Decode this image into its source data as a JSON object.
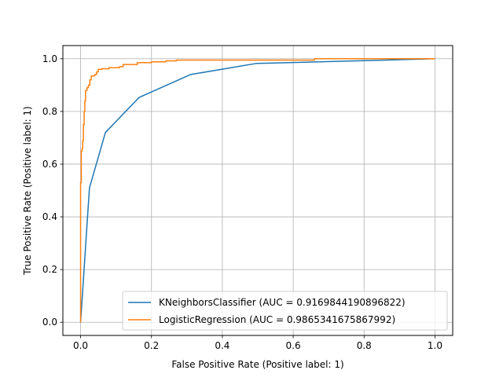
{
  "chart_data": {
    "type": "line",
    "xlabel": "False Positive Rate (Positive label: 1)",
    "ylabel": "True Positive Rate (Positive label: 1)",
    "xlim": [
      -0.05,
      1.05
    ],
    "ylim": [
      -0.05,
      1.05
    ],
    "grid": true,
    "legend_position": "lower-right",
    "x_ticks": [
      0.0,
      0.2,
      0.4,
      0.6,
      0.8,
      1.0
    ],
    "y_ticks": [
      0.0,
      0.2,
      0.4,
      0.6,
      0.8,
      1.0
    ],
    "x_tick_labels": [
      "0.0",
      "0.2",
      "0.4",
      "0.6",
      "0.8",
      "1.0"
    ],
    "y_tick_labels": [
      "0.0",
      "0.2",
      "0.4",
      "0.6",
      "0.8",
      "1.0"
    ],
    "series": [
      {
        "name": "KNeighborsClassifier (AUC = 0.9169844190896822)",
        "color": "#1f77b4",
        "points": [
          [
            0.0,
            0.0
          ],
          [
            0.025,
            0.51
          ],
          [
            0.07,
            0.72
          ],
          [
            0.165,
            0.853
          ],
          [
            0.31,
            0.94
          ],
          [
            0.495,
            0.982
          ],
          [
            1.0,
            1.0
          ]
        ]
      },
      {
        "name": "LogisticRegression (AUC = 0.9865341675867992)",
        "color": "#ff7f0e",
        "points": [
          [
            0.0,
            0.0
          ],
          [
            0.0,
            0.53
          ],
          [
            0.002,
            0.53
          ],
          [
            0.002,
            0.65
          ],
          [
            0.004,
            0.65
          ],
          [
            0.004,
            0.66
          ],
          [
            0.006,
            0.66
          ],
          [
            0.006,
            0.69
          ],
          [
            0.008,
            0.69
          ],
          [
            0.008,
            0.75
          ],
          [
            0.01,
            0.75
          ],
          [
            0.01,
            0.8
          ],
          [
            0.012,
            0.8
          ],
          [
            0.012,
            0.84
          ],
          [
            0.014,
            0.84
          ],
          [
            0.014,
            0.88
          ],
          [
            0.018,
            0.88
          ],
          [
            0.018,
            0.89
          ],
          [
            0.022,
            0.89
          ],
          [
            0.022,
            0.9
          ],
          [
            0.026,
            0.9
          ],
          [
            0.026,
            0.92
          ],
          [
            0.03,
            0.92
          ],
          [
            0.03,
            0.935
          ],
          [
            0.04,
            0.935
          ],
          [
            0.04,
            0.94
          ],
          [
            0.045,
            0.94
          ],
          [
            0.045,
            0.95
          ],
          [
            0.05,
            0.95
          ],
          [
            0.05,
            0.96
          ],
          [
            0.06,
            0.96
          ],
          [
            0.06,
            0.962
          ],
          [
            0.08,
            0.962
          ],
          [
            0.08,
            0.966
          ],
          [
            0.11,
            0.966
          ],
          [
            0.11,
            0.97
          ],
          [
            0.12,
            0.97
          ],
          [
            0.12,
            0.978
          ],
          [
            0.16,
            0.978
          ],
          [
            0.16,
            0.985
          ],
          [
            0.2,
            0.985
          ],
          [
            0.2,
            0.988
          ],
          [
            0.24,
            0.988
          ],
          [
            0.24,
            0.992
          ],
          [
            0.27,
            0.992
          ],
          [
            0.27,
            0.995
          ],
          [
            0.66,
            0.995
          ],
          [
            0.66,
            1.0
          ],
          [
            1.0,
            1.0
          ]
        ]
      }
    ]
  }
}
